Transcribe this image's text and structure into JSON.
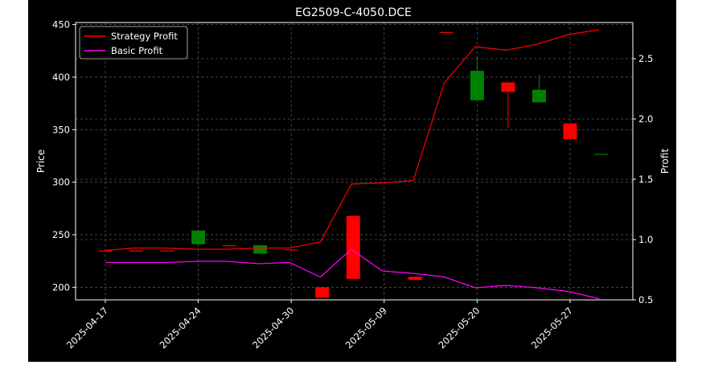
{
  "chart_data": {
    "type": "candlestick-with-lines",
    "title": "EG2509-C-4050.DCE",
    "ylabel_left": "Price",
    "ylabel_right": "Profit",
    "ylim_left": [
      188,
      452
    ],
    "ylim_right": [
      0.5,
      2.8
    ],
    "grid": true,
    "legend_placement": "top-left",
    "background": "#000000",
    "x_tick_labels": [
      "2025-04-17",
      "2025-04-24",
      "2025-04-30",
      "2025-05-09",
      "2025-05-20",
      "2025-05-27"
    ],
    "x_tick_positions": [
      0,
      3,
      6,
      9,
      12,
      15
    ],
    "y_ticks_left": [
      200,
      250,
      300,
      350,
      400,
      450
    ],
    "y_ticks_right": [
      0.5,
      1.0,
      1.5,
      2.0,
      2.5
    ],
    "candles": [
      {
        "i": 0,
        "open": 235,
        "high": 235,
        "low": 235,
        "close": 235,
        "color": "#ff0000"
      },
      {
        "i": 1,
        "open": 235,
        "high": 235,
        "low": 235,
        "close": 235,
        "color": "#ff0000"
      },
      {
        "i": 2,
        "open": 235,
        "high": 235,
        "low": 235,
        "close": 235,
        "color": "#ff0000"
      },
      {
        "i": 3,
        "open": 241,
        "high": 254,
        "low": 241,
        "close": 254,
        "color": "#008000"
      },
      {
        "i": 4,
        "open": 240,
        "high": 240,
        "low": 240,
        "close": 240,
        "color": "#ff0000"
      },
      {
        "i": 5,
        "open": 232,
        "high": 240,
        "low": 232,
        "close": 240,
        "color": "#008000"
      },
      {
        "i": 6,
        "open": 236,
        "high": 236,
        "low": 236,
        "close": 236,
        "color": "#ff0000"
      },
      {
        "i": 7,
        "open": 200,
        "high": 200,
        "low": 190,
        "close": 190,
        "color": "#ff0000"
      },
      {
        "i": 8,
        "open": 268,
        "high": 268,
        "low": 208,
        "close": 208,
        "color": "#ff0000"
      },
      {
        "i": 10,
        "open": 210,
        "high": 210,
        "low": 207,
        "close": 207,
        "color": "#ff0000"
      },
      {
        "i": 11,
        "open": 443,
        "high": 443,
        "low": 443,
        "close": 443,
        "color": "#ff0000"
      },
      {
        "i": 12,
        "open": 378,
        "high": 420,
        "low": 378,
        "close": 406,
        "color": "#008000"
      },
      {
        "i": 13,
        "open": 395,
        "high": 395,
        "low": 352,
        "close": 386,
        "color": "#ff0000"
      },
      {
        "i": 14,
        "open": 376,
        "high": 402,
        "low": 376,
        "close": 388,
        "color": "#008000"
      },
      {
        "i": 15,
        "open": 356,
        "high": 356,
        "low": 341,
        "close": 341,
        "color": "#ff0000"
      },
      {
        "i": 16,
        "open": 327,
        "high": 327,
        "low": 327,
        "close": 327,
        "color": "#008000"
      }
    ],
    "series": [
      {
        "name": "Strategy Profit",
        "color": "#ff0000",
        "axis": "right",
        "x": [
          0,
          0.94,
          1.94,
          2.94,
          3.94,
          4.94,
          5.94,
          6.94,
          7.94,
          8.94,
          9.94,
          10.94,
          11.94,
          12.94,
          13.94,
          14.94,
          15.94
        ],
        "values": [
          0.91,
          0.93,
          0.93,
          0.92,
          0.92,
          0.93,
          0.93,
          0.98,
          1.46,
          1.47,
          1.49,
          2.3,
          2.6,
          2.57,
          2.62,
          2.7,
          2.74
        ]
      },
      {
        "name": "Basic Profit",
        "color": "#ff00ff",
        "axis": "right",
        "x": [
          0,
          0.94,
          1.94,
          2.94,
          3.94,
          4.94,
          5.94,
          6.94,
          7.94,
          8.94,
          9.94,
          10.94,
          11.94,
          12.94,
          13.94,
          14.94,
          15.94
        ],
        "values": [
          0.81,
          0.81,
          0.81,
          0.82,
          0.82,
          0.8,
          0.81,
          0.69,
          0.92,
          0.74,
          0.72,
          0.69,
          0.6,
          0.62,
          0.6,
          0.57,
          0.51
        ]
      }
    ]
  }
}
